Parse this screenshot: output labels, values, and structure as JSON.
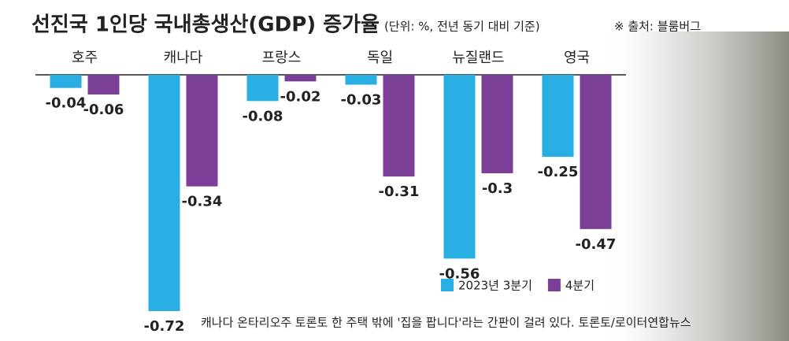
{
  "chart_data": {
    "type": "bar",
    "title": "선진국 1인당 국내총생산(GDP) 증가율",
    "subtitle": "(단위: %, 전년 동기 대비 기준)",
    "source": "※ 출처: 블룸버그",
    "caption": "캐나다 온타리오주 토론토 한 주택 밖에 '집을 팝니다'라는 간판이 걸려 있다. 토론토/로이터연합뉴스",
    "categories": [
      "호주",
      "캐나다",
      "프랑스",
      "독일",
      "뉴질랜드",
      "영국"
    ],
    "series": [
      {
        "name": "2023년 3분기",
        "color": "#29aee3",
        "values": [
          -0.04,
          -0.72,
          -0.08,
          -0.03,
          -0.56,
          -0.25
        ]
      },
      {
        "name": "4분기",
        "color": "#7b3f98",
        "values": [
          -0.06,
          -0.34,
          -0.02,
          -0.31,
          -0.3,
          -0.47
        ]
      }
    ]
  }
}
